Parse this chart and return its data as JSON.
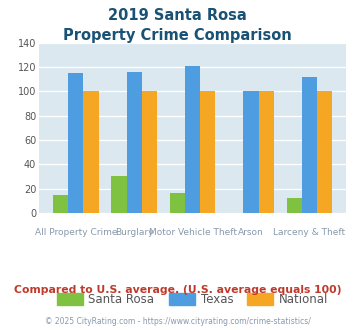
{
  "title_line1": "2019 Santa Rosa",
  "title_line2": "Property Crime Comparison",
  "groups": [
    "All Property Crime",
    "Burglary",
    "Motor Vehicle Theft",
    "Arson",
    "Larceny & Theft"
  ],
  "group_labels_row1": [
    "",
    "Burglary",
    "",
    "Arson",
    ""
  ],
  "group_labels_row2": [
    "All Property Crime",
    "",
    "Motor Vehicle Theft",
    "",
    "Larceny & Theft"
  ],
  "santa_rosa": [
    15,
    30,
    16,
    0,
    12
  ],
  "texas": [
    115,
    116,
    121,
    100,
    112
  ],
  "national": [
    100,
    100,
    100,
    100,
    100
  ],
  "color_santa_rosa": "#7fc241",
  "color_texas": "#4d9de0",
  "color_national": "#f5a623",
  "bg_color": "#dce8f0",
  "ylim": [
    0,
    140
  ],
  "yticks": [
    0,
    20,
    40,
    60,
    80,
    100,
    120,
    140
  ],
  "legend_labels": [
    "Santa Rosa",
    "Texas",
    "National"
  ],
  "note_text": "Compared to U.S. average. (U.S. average equals 100)",
  "footer_text": "© 2025 CityRating.com - https://www.cityrating.com/crime-statistics/",
  "title_color": "#1a5276",
  "note_color": "#c0392b",
  "footer_color": "#8899aa",
  "label_color": "#8899aa",
  "tick_color": "#555555"
}
